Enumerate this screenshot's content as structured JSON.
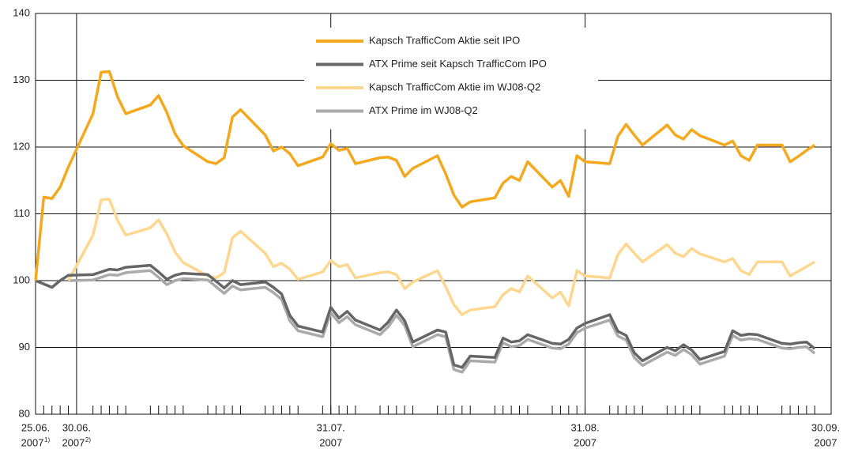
{
  "chart_data": {
    "type": "line",
    "x": [
      0,
      1,
      2,
      3,
      4,
      7,
      8,
      9,
      10,
      11,
      14,
      15,
      16,
      17,
      18,
      21,
      22,
      23,
      24,
      25,
      28,
      29,
      30,
      31,
      32,
      35,
      36,
      37,
      38,
      39,
      42,
      43,
      44,
      45,
      46,
      49,
      50,
      51,
      52,
      53,
      56,
      57,
      58,
      59,
      60,
      63,
      64,
      65,
      66,
      67,
      70,
      71,
      72,
      73,
      74,
      77,
      78,
      79,
      80,
      81,
      84,
      85,
      86,
      87,
      88,
      91,
      92,
      93,
      94,
      95
    ],
    "xlim": [
      0,
      97
    ],
    "xticks": [
      {
        "value": 0,
        "label": "25.06.",
        "year": "2007",
        "note": "1)"
      },
      {
        "value": 5,
        "label": "30.06.",
        "year": "2007",
        "note": "2)"
      },
      {
        "value": 36,
        "label": "31.07.",
        "year": "2007"
      },
      {
        "value": 67,
        "label": "31.08.",
        "year": "2007"
      },
      {
        "value": 97,
        "label": "30.09.",
        "year": "2007"
      }
    ],
    "ylim": [
      80,
      140
    ],
    "yticks": [
      80,
      90,
      100,
      110,
      120,
      130,
      140
    ],
    "grid": true,
    "series": [
      {
        "name": "Kapsch TrafficCom Aktie seit IPO",
        "color": "#f4a81d",
        "values": [
          100,
          112.5,
          112.3,
          114,
          117,
          125,
          131.2,
          131.3,
          127.5,
          125,
          126.3,
          127.7,
          125.2,
          122,
          120.2,
          117.8,
          117.5,
          118.4,
          124.5,
          125.6,
          121.8,
          119.4,
          120,
          119,
          117.2,
          118.5,
          120.5,
          119.5,
          119.8,
          117.5,
          118.4,
          118.5,
          118,
          115.6,
          116.8,
          118.7,
          116,
          112.8,
          111,
          111.8,
          112.4,
          114.6,
          115.6,
          115,
          117.8,
          114,
          115,
          112.6,
          118.7,
          117.8,
          117.5,
          121.6,
          123.4,
          121.8,
          120.3,
          123.3,
          121.8,
          121.2,
          122.6,
          121.7,
          120.3,
          120.9,
          118.7,
          118,
          120.3,
          120.3,
          117.8,
          118.6,
          119.5,
          120.3
        ]
      },
      {
        "name": "ATX Prime seit Kapsch TrafficCom IPO",
        "color": "#666666",
        "values": [
          100,
          99.5,
          99,
          100,
          100.8,
          100.9,
          101.3,
          101.7,
          101.6,
          102,
          102.3,
          101.3,
          100.2,
          100.8,
          101.1,
          100.9,
          99.9,
          98.9,
          100,
          99.4,
          99.8,
          99,
          98,
          94.8,
          93.2,
          92.3,
          96,
          94.4,
          95.4,
          94.1,
          92.6,
          93.8,
          95.6,
          94,
          90.8,
          92.6,
          92.3,
          87.4,
          87,
          88.7,
          88.5,
          91.4,
          90.8,
          91,
          91.9,
          90.6,
          90.5,
          91.2,
          92.9,
          93.6,
          94.9,
          92.4,
          91.8,
          89.2,
          88,
          90,
          89.5,
          90.4,
          89.6,
          88.2,
          89.4,
          92.5,
          91.8,
          92,
          91.9,
          90.6,
          90.5,
          90.7,
          90.8,
          89.8
        ]
      },
      {
        "name": "Kapsch TrafficCom Aktie im WJ08-Q2",
        "color": "#fdd78f",
        "values": [
          null,
          null,
          null,
          null,
          100,
          106.8,
          112.1,
          112.2,
          109,
          106.8,
          107.9,
          109.1,
          107,
          104.3,
          102.7,
          100.7,
          100.4,
          101.2,
          106.4,
          107.4,
          104.1,
          102.1,
          102.6,
          101.7,
          100.2,
          101.3,
          103,
          102.1,
          102.4,
          100.4,
          101.2,
          101.3,
          100.9,
          98.8,
          99.8,
          101.5,
          99.1,
          96.4,
          94.9,
          95.6,
          96.1,
          97.9,
          98.8,
          98.3,
          100.7,
          97.4,
          98.3,
          96.2,
          101.5,
          100.7,
          100.4,
          103.9,
          105.5,
          104.1,
          102.8,
          105.4,
          104.1,
          103.6,
          104.8,
          104,
          102.8,
          103.3,
          101.5,
          100.9,
          102.8,
          102.8,
          100.7,
          101.4,
          102.1,
          102.8
        ]
      },
      {
        "name": "ATX Prime im WJ08-Q2",
        "color": "#aaaaaa",
        "values": [
          null,
          null,
          null,
          null,
          100,
          100.1,
          100.5,
          100.9,
          100.8,
          101.2,
          101.5,
          100.5,
          99.4,
          100,
          100.3,
          100.1,
          99.1,
          98.1,
          99.2,
          98.6,
          99,
          98.2,
          97.2,
          94,
          92.5,
          91.6,
          95.2,
          93.7,
          94.6,
          93.4,
          91.9,
          93.1,
          94.8,
          93.3,
          90.1,
          91.9,
          91.6,
          86.7,
          86.3,
          88,
          87.8,
          90.7,
          90.1,
          90.3,
          91.2,
          89.9,
          89.8,
          90.5,
          92.2,
          92.9,
          94.1,
          91.7,
          91.1,
          88.5,
          87.3,
          89.3,
          88.8,
          89.7,
          88.9,
          87.5,
          88.7,
          91.8,
          91.1,
          91.3,
          91.2,
          89.9,
          89.8,
          90,
          90.1,
          89.1
        ]
      }
    ]
  }
}
